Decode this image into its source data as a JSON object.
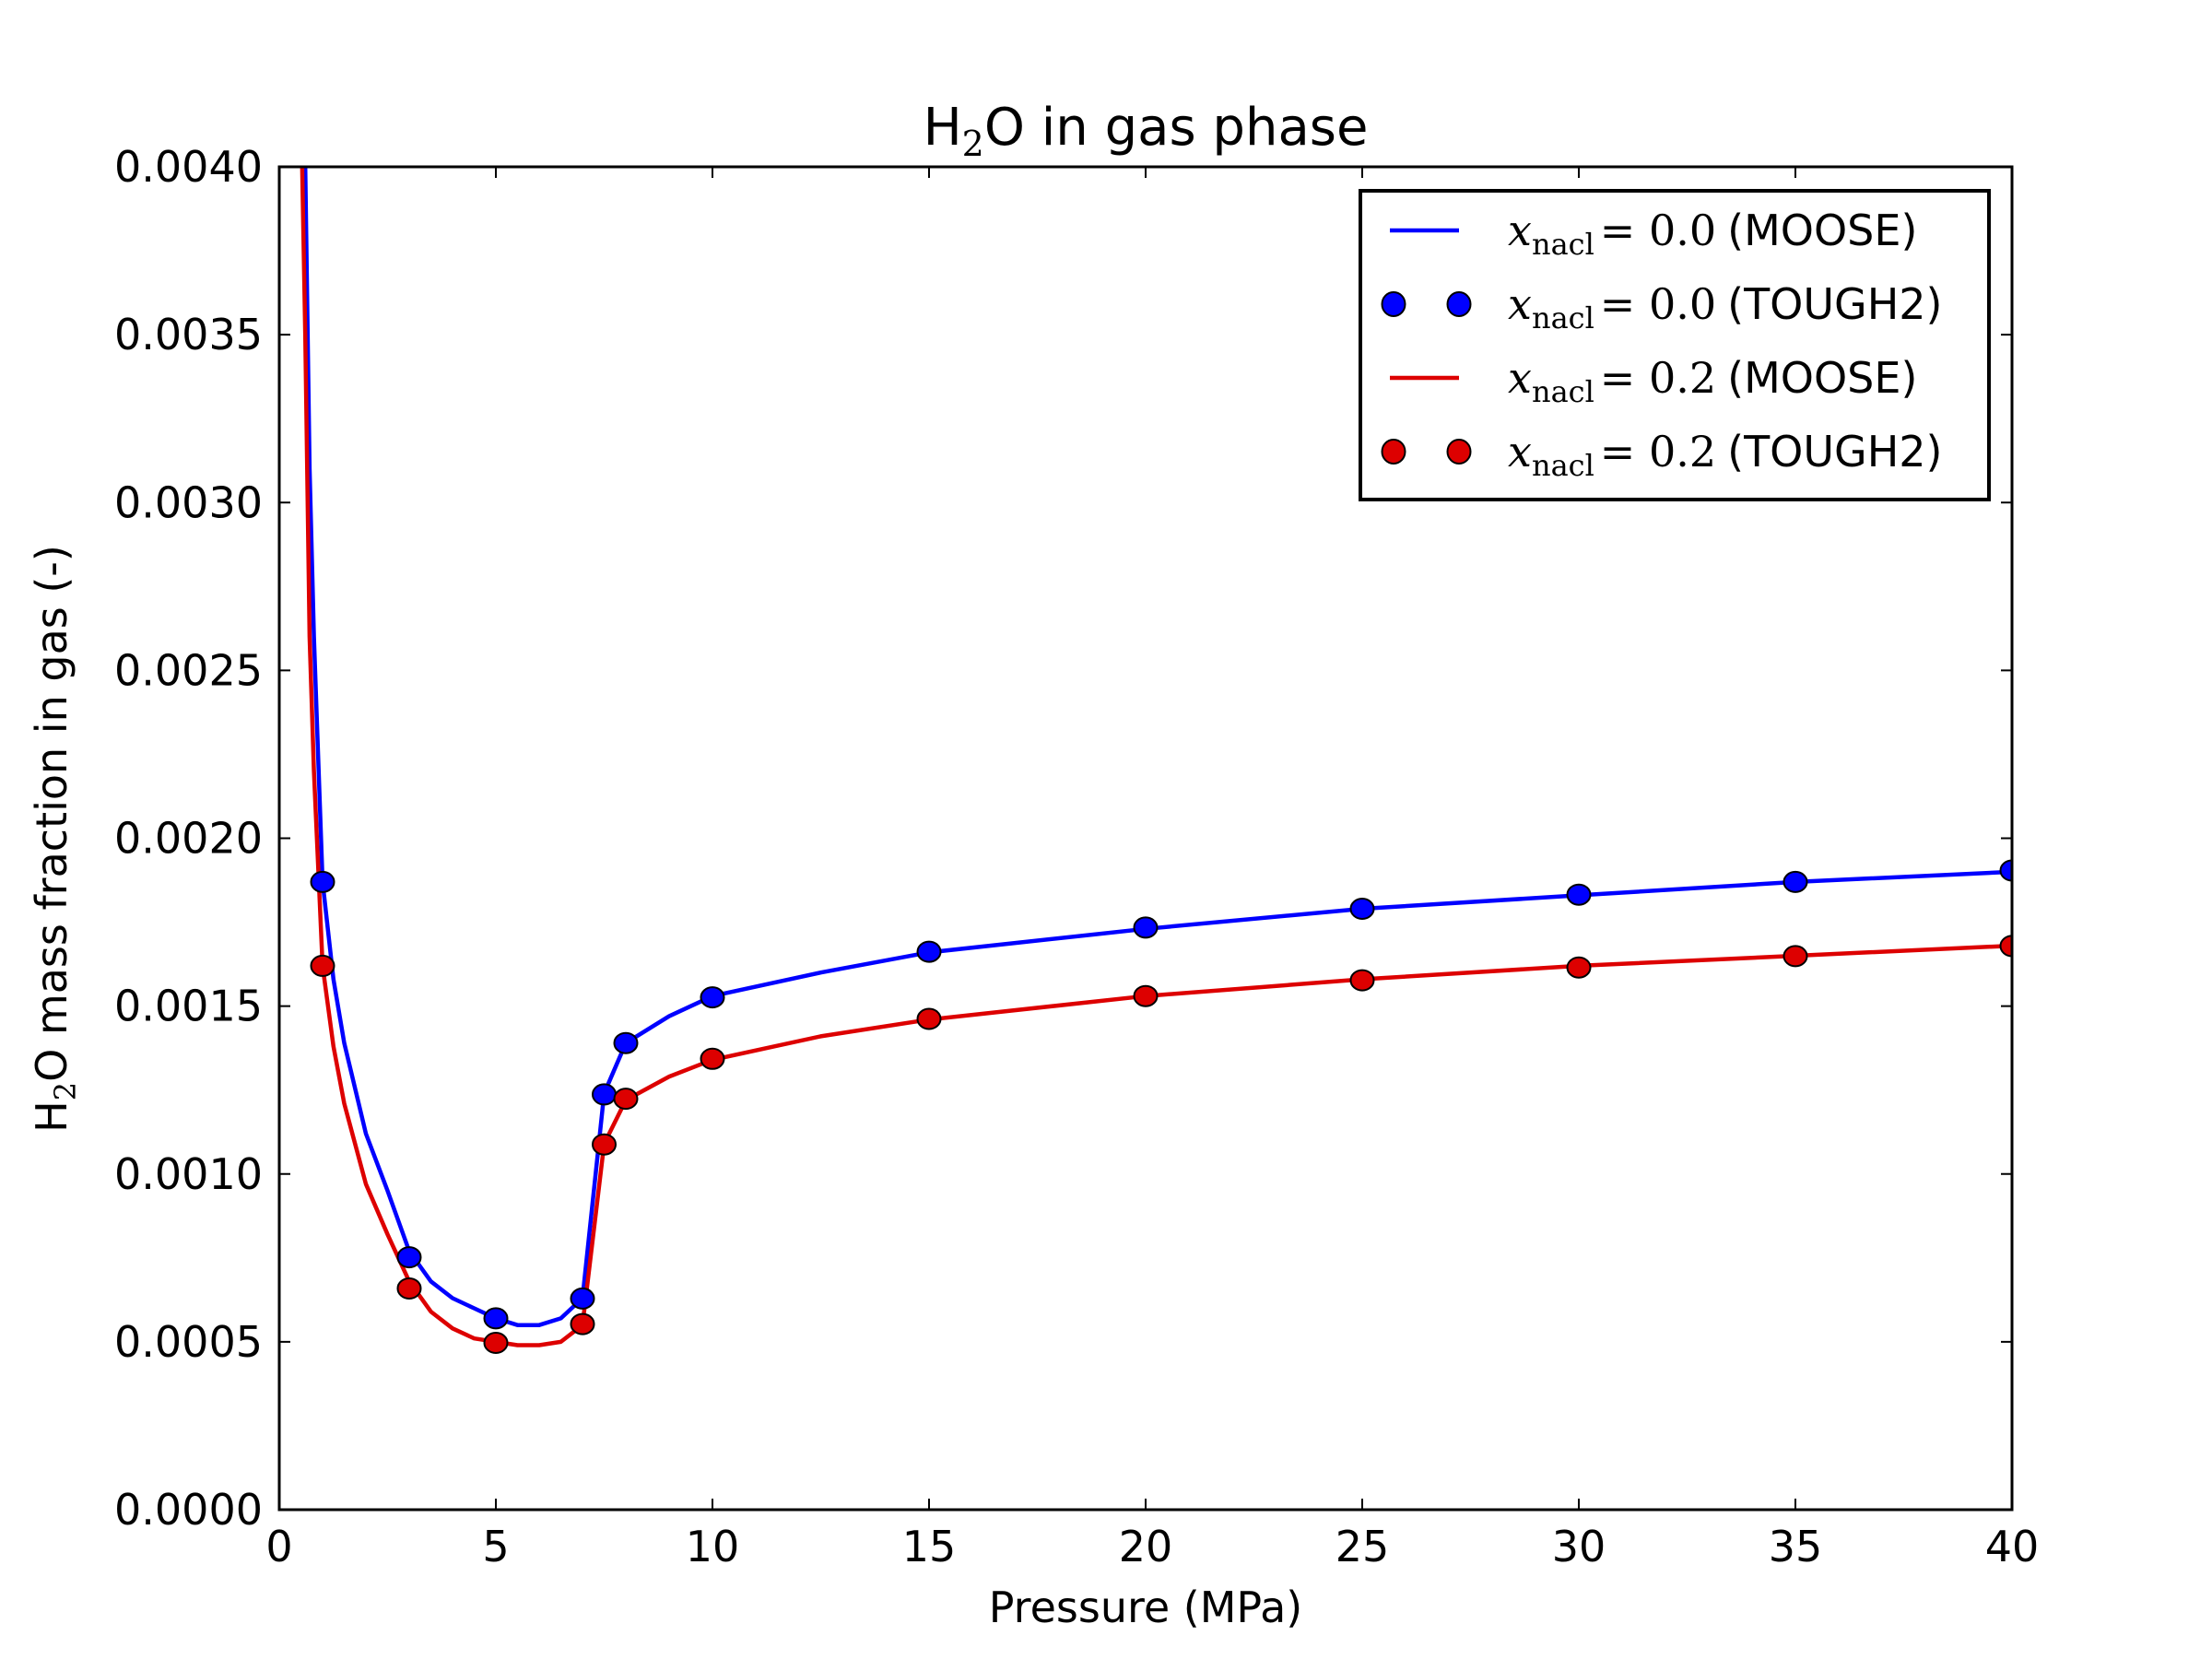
{
  "chart_data": {
    "type": "line",
    "title": {
      "pre": "H",
      "sub": "2",
      "post": "O in gas phase"
    },
    "xlabel": "Pressure (MPa)",
    "ylabel": {
      "pre": "H",
      "sub": "2",
      "post": "O mass fraction in gas (-)"
    },
    "xlim": [
      0,
      40
    ],
    "ylim": [
      0,
      0.004
    ],
    "xticks": [
      0,
      5,
      10,
      15,
      20,
      25,
      30,
      35,
      40
    ],
    "xtick_labels": [
      "0",
      "5",
      "10",
      "15",
      "20",
      "25",
      "30",
      "35",
      "40"
    ],
    "yticks": [
      0,
      0.0005,
      0.001,
      0.0015,
      0.002,
      0.0025,
      0.003,
      0.0035,
      0.004
    ],
    "ytick_labels": [
      "0.0000",
      "0.0005",
      "0.0010",
      "0.0015",
      "0.0020",
      "0.0025",
      "0.0030",
      "0.0035",
      "0.0040"
    ],
    "grid": false,
    "legend_placement": "top-right",
    "series": [
      {
        "name": {
          "var": "x",
          "sub": "nacl",
          "value": "= 0.0",
          "source": "(MOOSE)"
        },
        "style": "line",
        "color": "#0000ff",
        "x": [
          0.5,
          0.6,
          0.7,
          0.8,
          1,
          1.25,
          1.5,
          2,
          2.5,
          3,
          3.5,
          4,
          4.5,
          5,
          5.5,
          6,
          6.5,
          7,
          7.5,
          8,
          9,
          10,
          12.5,
          15,
          20,
          25,
          30,
          35,
          40
        ],
        "y": [
          0.0045,
          0.004,
          0.0031,
          0.0026,
          0.00187,
          0.00158,
          0.00139,
          0.00112,
          0.00095,
          0.00077,
          0.00068,
          0.00063,
          0.0006,
          0.00057,
          0.00055,
          0.00055,
          0.00057,
          0.00063,
          0.00124,
          0.00139,
          0.00147,
          0.00153,
          0.0016,
          0.00166,
          0.00173,
          0.00179,
          0.00183,
          0.00187,
          0.0019
        ]
      },
      {
        "name": {
          "var": "x",
          "sub": "nacl",
          "value": "= 0.0",
          "source": "(TOUGH2)"
        },
        "style": "markers",
        "color": "#0000ff",
        "x": [
          1,
          3,
          5,
          7,
          7.5,
          8,
          10,
          15,
          20,
          25,
          30,
          35,
          40
        ],
        "y": [
          0.00187,
          0.000752,
          0.00057,
          0.000629,
          0.001237,
          0.00139,
          0.001526,
          0.001662,
          0.001734,
          0.00179,
          0.001832,
          0.00187,
          0.001904
        ]
      },
      {
        "name": {
          "var": "x",
          "sub": "nacl",
          "value": "= 0.2",
          "source": "(MOOSE)"
        },
        "style": "line",
        "color": "#dd0000",
        "x": [
          0.5,
          0.6,
          0.7,
          0.8,
          1,
          1.25,
          1.5,
          2,
          2.5,
          3,
          3.5,
          4,
          4.5,
          5,
          5.5,
          6,
          6.5,
          7,
          7.5,
          8,
          9,
          10,
          12.5,
          15,
          20,
          25,
          30,
          35,
          40
        ],
        "y": [
          0.0042,
          0.0035,
          0.0026,
          0.0022,
          0.00162,
          0.00138,
          0.00121,
          0.00097,
          0.00082,
          0.00068,
          0.00059,
          0.00054,
          0.00051,
          0.0005,
          0.00049,
          0.00049,
          0.0005,
          0.00055,
          0.00109,
          0.00122,
          0.00129,
          0.00134,
          0.00141,
          0.00146,
          0.00153,
          0.00158,
          0.00162,
          0.00165,
          0.00168
        ]
      },
      {
        "name": {
          "var": "x",
          "sub": "nacl",
          "value": "= 0.2",
          "source": "(TOUGH2)"
        },
        "style": "markers",
        "color": "#dd0000",
        "x": [
          1,
          3,
          5,
          7,
          7.5,
          8,
          10,
          15,
          20,
          25,
          30,
          35,
          40
        ],
        "y": [
          0.00162,
          0.000659,
          0.000497,
          0.000553,
          0.001088,
          0.001224,
          0.001343,
          0.001462,
          0.00153,
          0.001577,
          0.001615,
          0.001649,
          0.001679
        ]
      }
    ]
  }
}
